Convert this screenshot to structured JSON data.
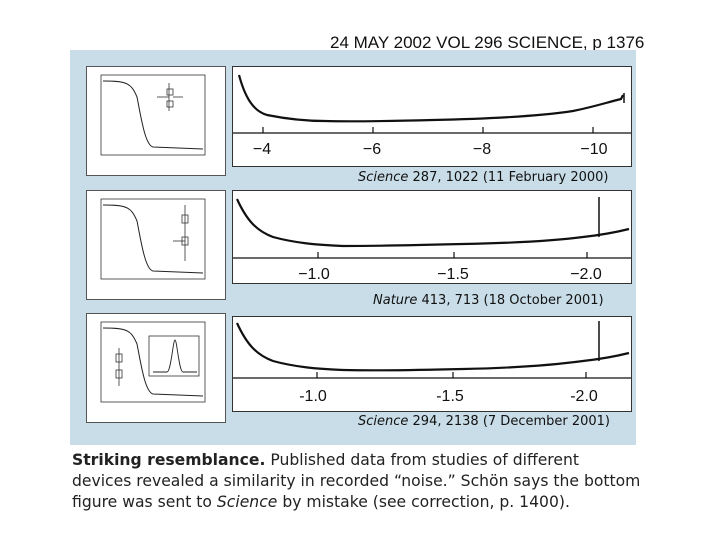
{
  "header": {
    "text": "24 MAY 2002 VOL 296 SCIENCE, p 1376"
  },
  "panels": [
    {
      "ticks": [
        "−4",
        "−6",
        "−8",
        "−10"
      ],
      "citation": {
        "journal": "Science",
        "rest": " 287, 1022 (11 February 2000)"
      }
    },
    {
      "ticks": [
        "−1.0",
        "−1.5",
        "−2.0"
      ],
      "citation": {
        "journal": "Nature",
        "rest": " 413, 713 (18 October 2001)"
      }
    },
    {
      "ticks": [
        "-1.0",
        "-1.5",
        "-2.0"
      ],
      "citation": {
        "journal": "Science",
        "rest": " 294, 2138 (7 December 2001)"
      }
    }
  ],
  "caption": {
    "bold": "Striking resemblance.",
    "part1": " Published data from studies of different devices revealed a similarity in recorded “noise.” Schön says the bottom figure was sent to ",
    "italic": "Science",
    "part2": " by mistake (see correction, p. 1400)."
  }
}
